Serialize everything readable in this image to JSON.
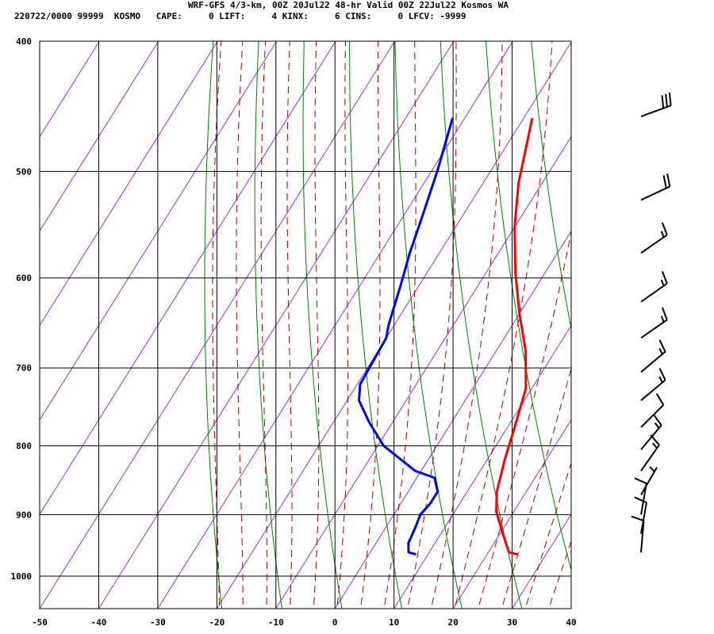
{
  "header": {
    "title": "WRF-GFS 4/3-km, 00Z 20Jul22 48-hr Valid 00Z 22Jul22 Kosmos WA",
    "subtitle": "220722/0000 99999  KOSMO   CAPE:     0 LIFT:     4 KINX:     6 CINS:     0 LFCV: -9999"
  },
  "chart_data": {
    "type": "skew-t",
    "title": "WRF-GFS 4/3-km, 00Z 20Jul22 48-hr Valid 00Z 22Jul22 Kosmos WA",
    "xlabel": "",
    "ylabel": "",
    "x_ticks": [
      -50,
      -40,
      -30,
      -20,
      -10,
      0,
      10,
      20,
      30,
      40
    ],
    "y_ticks": [
      400,
      500,
      600,
      700,
      800,
      900,
      1000
    ],
    "xlim": [
      -50,
      40
    ],
    "ylim": [
      1040,
      400
    ],
    "y_scale": "log-pressure",
    "grid": true,
    "colors": {
      "temperature": "#ff0000",
      "dewpoint": "#0000ff",
      "isotherm": "#9933cc",
      "dry_adiabat": "#008000",
      "moist_adiabat": "#aa0000",
      "grid": "#000000"
    },
    "series": [
      {
        "points": [
          [
            -18.5,
            457
          ],
          [
            -14,
            510
          ],
          [
            -10,
            550
          ],
          [
            -5,
            595
          ],
          [
            0,
            638
          ],
          [
            5,
            680
          ],
          [
            9,
            725
          ],
          [
            11,
            770
          ],
          [
            13,
            820
          ],
          [
            15,
            865
          ],
          [
            17,
            895
          ],
          [
            20,
            925
          ],
          [
            22,
            945
          ],
          [
            23.5,
            960
          ],
          [
            25,
            963
          ]
        ]
      },
      {
        "points": [
          [
            -32,
            457
          ],
          [
            -29,
            500
          ],
          [
            -26.5,
            545
          ],
          [
            -25,
            575
          ],
          [
            -23,
            610
          ],
          [
            -21,
            650
          ],
          [
            -20,
            665
          ],
          [
            -19.5,
            720
          ],
          [
            -18,
            740
          ],
          [
            -14,
            768
          ],
          [
            -9,
            800
          ],
          [
            -1,
            835
          ],
          [
            3,
            845
          ],
          [
            5,
            865
          ],
          [
            5,
            882
          ],
          [
            4.5,
            900
          ],
          [
            5,
            920
          ],
          [
            5.5,
            945
          ],
          [
            6.5,
            960
          ],
          [
            7.8,
            963
          ]
        ]
      }
    ],
    "wind_barbs": [
      {
        "p": 455,
        "dir": 250,
        "spd": 30
      },
      {
        "p": 525,
        "dir": 245,
        "spd": 20
      },
      {
        "p": 575,
        "dir": 235,
        "spd": 15
      },
      {
        "p": 625,
        "dir": 235,
        "spd": 15
      },
      {
        "p": 665,
        "dir": 235,
        "spd": 15
      },
      {
        "p": 705,
        "dir": 230,
        "spd": 15
      },
      {
        "p": 740,
        "dir": 230,
        "spd": 15
      },
      {
        "p": 775,
        "dir": 225,
        "spd": 10
      },
      {
        "p": 805,
        "dir": 220,
        "spd": 15
      },
      {
        "p": 835,
        "dir": 215,
        "spd": 15
      },
      {
        "p": 870,
        "dir": 210,
        "spd": 5
      },
      {
        "p": 900,
        "dir": 190,
        "spd": 10
      },
      {
        "p": 930,
        "dir": 190,
        "spd": 10
      },
      {
        "p": 960,
        "dir": 185,
        "spd": 10
      }
    ]
  }
}
